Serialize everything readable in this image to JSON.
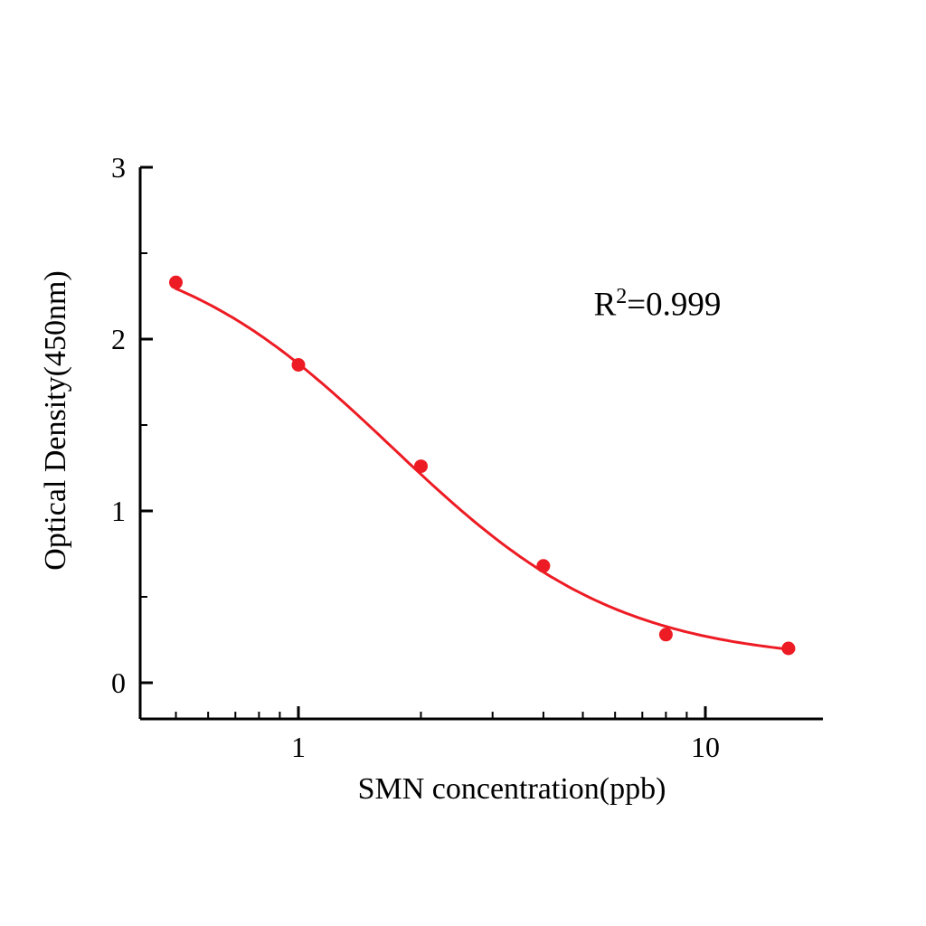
{
  "figure": {
    "background": "#ffffff"
  },
  "chart_data": {
    "type": "scatter",
    "title": "",
    "xlabel": "SMN concentration(ppb)",
    "ylabel": "Optical Density(450nm)",
    "x_scale": "log",
    "y_scale": "linear",
    "x": [
      0.5,
      1,
      2,
      4,
      8,
      16
    ],
    "y": [
      2.33,
      1.85,
      1.26,
      0.68,
      0.28,
      0.2
    ],
    "series_name": "SMN standard curve",
    "point_color": "#ed1c24",
    "curve_color": "#ed1c24",
    "axis_color": "#000000",
    "xlim": [
      0.41,
      19.5
    ],
    "ylim": [
      -0.21,
      3
    ],
    "x_major_ticks": [
      1,
      10
    ],
    "x_major_tick_labels": [
      "1",
      "10"
    ],
    "x_minor_ticks": [
      0.5,
      0.6,
      0.7,
      0.8,
      0.9,
      2,
      3,
      4,
      5,
      6,
      7,
      8,
      9
    ],
    "y_major_ticks": [
      0,
      1,
      2,
      3
    ],
    "y_major_tick_labels": [
      "0",
      "1",
      "2",
      "3"
    ],
    "y_minor_ticks": [
      0.5,
      1.5,
      2.5
    ],
    "grid": false,
    "legend": false,
    "annotation": {
      "base": "R",
      "sup": "2",
      "rest": "=0.999"
    },
    "fit": {
      "type": "4PL",
      "a": 2.62,
      "b": 1.55,
      "c": 1.7,
      "d": 0.12,
      "x_start": 0.5,
      "x_end": 16.5
    }
  }
}
